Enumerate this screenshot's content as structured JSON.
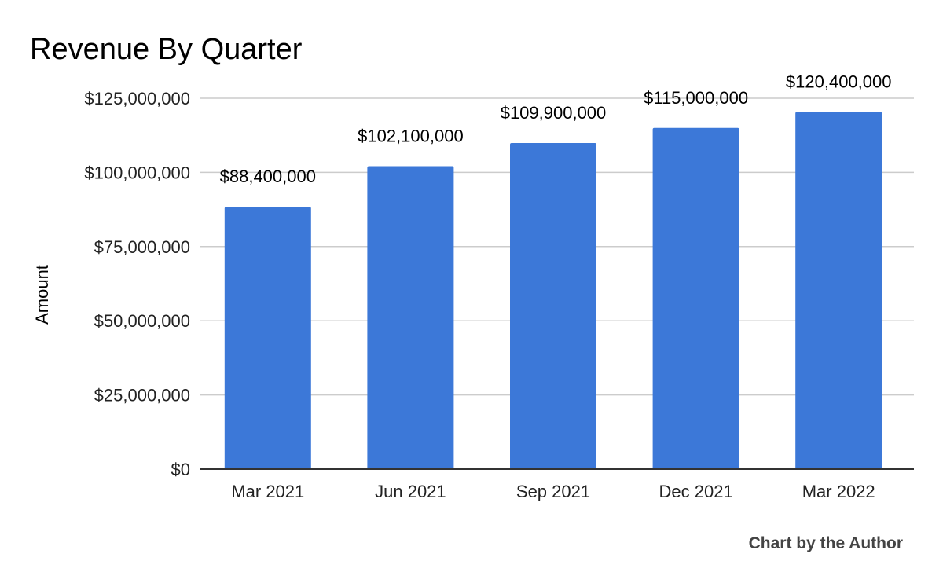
{
  "chart_data": {
    "type": "bar",
    "title": "Revenue By Quarter",
    "xlabel": "",
    "ylabel": "Amount",
    "categories": [
      "Mar 2021",
      "Jun 2021",
      "Sep 2021",
      "Dec 2021",
      "Mar 2022"
    ],
    "values": [
      88400000,
      102100000,
      109900000,
      115000000,
      120400000
    ],
    "data_labels": [
      "$88,400,000",
      "$102,100,000",
      "$109,900,000",
      "$115,000,000",
      "$120,400,000"
    ],
    "ylim": [
      0,
      125000000
    ],
    "yticks": [
      0,
      25000000,
      50000000,
      75000000,
      100000000,
      125000000
    ],
    "ytick_labels": [
      "$0",
      "$25,000,000",
      "$50,000,000",
      "$75,000,000",
      "$100,000,000",
      "$125,000,000"
    ],
    "grid": true,
    "bar_color": "#3c78d8",
    "gridline_color": "#cccccc",
    "baseline_color": "#333333"
  },
  "credit": "Chart by the Author"
}
